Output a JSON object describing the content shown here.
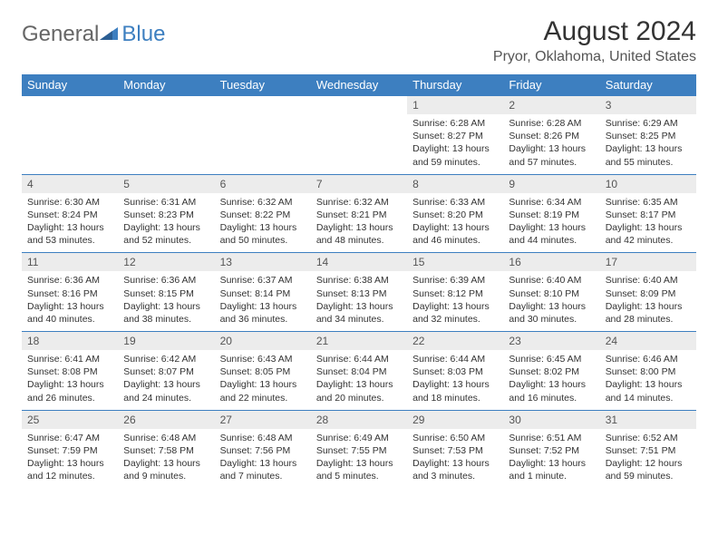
{
  "logo": {
    "part1": "General",
    "part2": "Blue"
  },
  "title": "August 2024",
  "location": "Pryor, Oklahoma, United States",
  "colors": {
    "header_bg": "#3d7fc0",
    "header_text": "#ffffff",
    "daynum_bg": "#ececec",
    "border": "#3d7fc0",
    "body_text": "#333333",
    "muted_text": "#555555",
    "page_bg": "#ffffff"
  },
  "typography": {
    "title_fontsize": 30,
    "location_fontsize": 16,
    "dow_fontsize": 13,
    "daynum_fontsize": 12,
    "cell_fontsize": 10.5
  },
  "weekdays": [
    "Sunday",
    "Monday",
    "Tuesday",
    "Wednesday",
    "Thursday",
    "Friday",
    "Saturday"
  ],
  "weeks": [
    [
      null,
      null,
      null,
      null,
      {
        "n": "1",
        "sr": "Sunrise: 6:28 AM",
        "ss": "Sunset: 8:27 PM",
        "dl1": "Daylight: 13 hours",
        "dl2": "and 59 minutes."
      },
      {
        "n": "2",
        "sr": "Sunrise: 6:28 AM",
        "ss": "Sunset: 8:26 PM",
        "dl1": "Daylight: 13 hours",
        "dl2": "and 57 minutes."
      },
      {
        "n": "3",
        "sr": "Sunrise: 6:29 AM",
        "ss": "Sunset: 8:25 PM",
        "dl1": "Daylight: 13 hours",
        "dl2": "and 55 minutes."
      }
    ],
    [
      {
        "n": "4",
        "sr": "Sunrise: 6:30 AM",
        "ss": "Sunset: 8:24 PM",
        "dl1": "Daylight: 13 hours",
        "dl2": "and 53 minutes."
      },
      {
        "n": "5",
        "sr": "Sunrise: 6:31 AM",
        "ss": "Sunset: 8:23 PM",
        "dl1": "Daylight: 13 hours",
        "dl2": "and 52 minutes."
      },
      {
        "n": "6",
        "sr": "Sunrise: 6:32 AM",
        "ss": "Sunset: 8:22 PM",
        "dl1": "Daylight: 13 hours",
        "dl2": "and 50 minutes."
      },
      {
        "n": "7",
        "sr": "Sunrise: 6:32 AM",
        "ss": "Sunset: 8:21 PM",
        "dl1": "Daylight: 13 hours",
        "dl2": "and 48 minutes."
      },
      {
        "n": "8",
        "sr": "Sunrise: 6:33 AM",
        "ss": "Sunset: 8:20 PM",
        "dl1": "Daylight: 13 hours",
        "dl2": "and 46 minutes."
      },
      {
        "n": "9",
        "sr": "Sunrise: 6:34 AM",
        "ss": "Sunset: 8:19 PM",
        "dl1": "Daylight: 13 hours",
        "dl2": "and 44 minutes."
      },
      {
        "n": "10",
        "sr": "Sunrise: 6:35 AM",
        "ss": "Sunset: 8:17 PM",
        "dl1": "Daylight: 13 hours",
        "dl2": "and 42 minutes."
      }
    ],
    [
      {
        "n": "11",
        "sr": "Sunrise: 6:36 AM",
        "ss": "Sunset: 8:16 PM",
        "dl1": "Daylight: 13 hours",
        "dl2": "and 40 minutes."
      },
      {
        "n": "12",
        "sr": "Sunrise: 6:36 AM",
        "ss": "Sunset: 8:15 PM",
        "dl1": "Daylight: 13 hours",
        "dl2": "and 38 minutes."
      },
      {
        "n": "13",
        "sr": "Sunrise: 6:37 AM",
        "ss": "Sunset: 8:14 PM",
        "dl1": "Daylight: 13 hours",
        "dl2": "and 36 minutes."
      },
      {
        "n": "14",
        "sr": "Sunrise: 6:38 AM",
        "ss": "Sunset: 8:13 PM",
        "dl1": "Daylight: 13 hours",
        "dl2": "and 34 minutes."
      },
      {
        "n": "15",
        "sr": "Sunrise: 6:39 AM",
        "ss": "Sunset: 8:12 PM",
        "dl1": "Daylight: 13 hours",
        "dl2": "and 32 minutes."
      },
      {
        "n": "16",
        "sr": "Sunrise: 6:40 AM",
        "ss": "Sunset: 8:10 PM",
        "dl1": "Daylight: 13 hours",
        "dl2": "and 30 minutes."
      },
      {
        "n": "17",
        "sr": "Sunrise: 6:40 AM",
        "ss": "Sunset: 8:09 PM",
        "dl1": "Daylight: 13 hours",
        "dl2": "and 28 minutes."
      }
    ],
    [
      {
        "n": "18",
        "sr": "Sunrise: 6:41 AM",
        "ss": "Sunset: 8:08 PM",
        "dl1": "Daylight: 13 hours",
        "dl2": "and 26 minutes."
      },
      {
        "n": "19",
        "sr": "Sunrise: 6:42 AM",
        "ss": "Sunset: 8:07 PM",
        "dl1": "Daylight: 13 hours",
        "dl2": "and 24 minutes."
      },
      {
        "n": "20",
        "sr": "Sunrise: 6:43 AM",
        "ss": "Sunset: 8:05 PM",
        "dl1": "Daylight: 13 hours",
        "dl2": "and 22 minutes."
      },
      {
        "n": "21",
        "sr": "Sunrise: 6:44 AM",
        "ss": "Sunset: 8:04 PM",
        "dl1": "Daylight: 13 hours",
        "dl2": "and 20 minutes."
      },
      {
        "n": "22",
        "sr": "Sunrise: 6:44 AM",
        "ss": "Sunset: 8:03 PM",
        "dl1": "Daylight: 13 hours",
        "dl2": "and 18 minutes."
      },
      {
        "n": "23",
        "sr": "Sunrise: 6:45 AM",
        "ss": "Sunset: 8:02 PM",
        "dl1": "Daylight: 13 hours",
        "dl2": "and 16 minutes."
      },
      {
        "n": "24",
        "sr": "Sunrise: 6:46 AM",
        "ss": "Sunset: 8:00 PM",
        "dl1": "Daylight: 13 hours",
        "dl2": "and 14 minutes."
      }
    ],
    [
      {
        "n": "25",
        "sr": "Sunrise: 6:47 AM",
        "ss": "Sunset: 7:59 PM",
        "dl1": "Daylight: 13 hours",
        "dl2": "and 12 minutes."
      },
      {
        "n": "26",
        "sr": "Sunrise: 6:48 AM",
        "ss": "Sunset: 7:58 PM",
        "dl1": "Daylight: 13 hours",
        "dl2": "and 9 minutes."
      },
      {
        "n": "27",
        "sr": "Sunrise: 6:48 AM",
        "ss": "Sunset: 7:56 PM",
        "dl1": "Daylight: 13 hours",
        "dl2": "and 7 minutes."
      },
      {
        "n": "28",
        "sr": "Sunrise: 6:49 AM",
        "ss": "Sunset: 7:55 PM",
        "dl1": "Daylight: 13 hours",
        "dl2": "and 5 minutes."
      },
      {
        "n": "29",
        "sr": "Sunrise: 6:50 AM",
        "ss": "Sunset: 7:53 PM",
        "dl1": "Daylight: 13 hours",
        "dl2": "and 3 minutes."
      },
      {
        "n": "30",
        "sr": "Sunrise: 6:51 AM",
        "ss": "Sunset: 7:52 PM",
        "dl1": "Daylight: 13 hours",
        "dl2": "and 1 minute."
      },
      {
        "n": "31",
        "sr": "Sunrise: 6:52 AM",
        "ss": "Sunset: 7:51 PM",
        "dl1": "Daylight: 12 hours",
        "dl2": "and 59 minutes."
      }
    ]
  ]
}
